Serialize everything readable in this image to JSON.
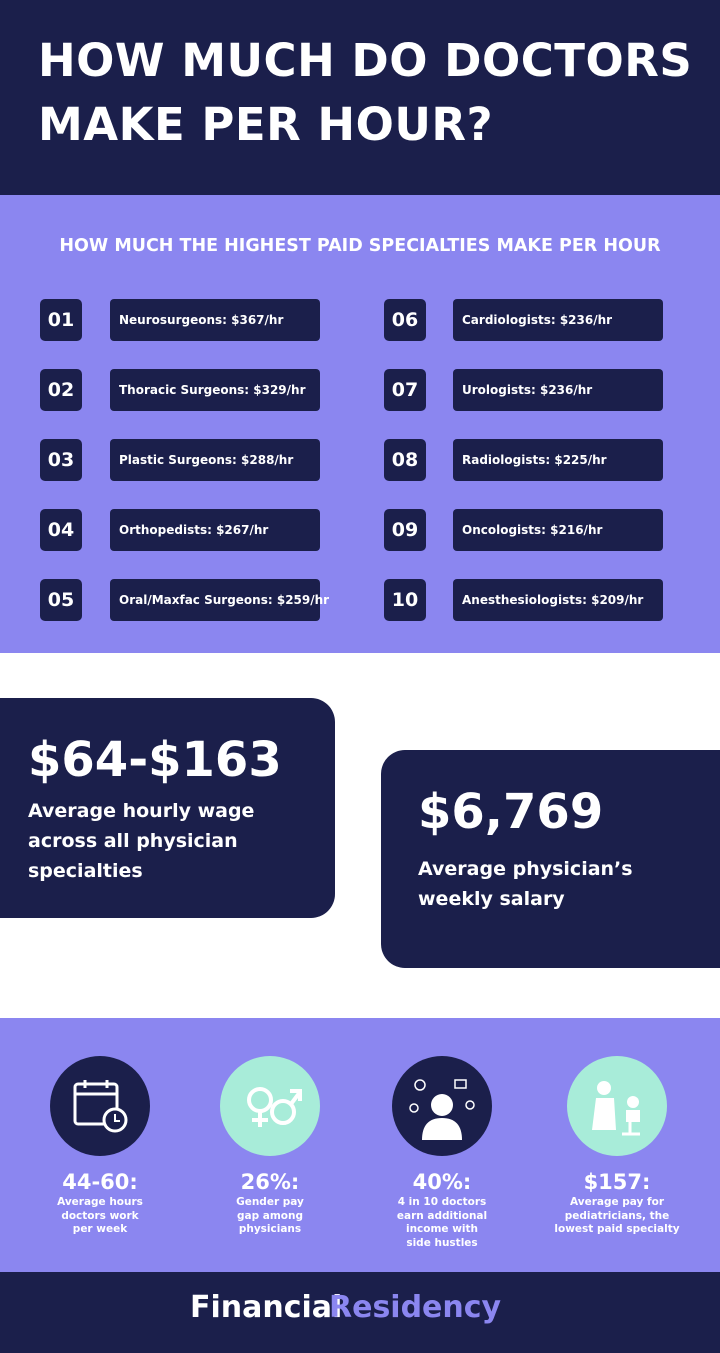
{
  "header": {
    "title_lines": [
      "HOW MUCH DO DOCTORS",
      "MAKE PER HOUR?"
    ]
  },
  "specialties": {
    "subtitle": "HOW MUCH THE HIGHEST PAID SPECIALTIES MAKE PER HOUR",
    "items": [
      {
        "rank": "01",
        "label": "Neurosurgeons: $367/hr"
      },
      {
        "rank": "02",
        "label": "Thoracic Surgeons: $329/hr"
      },
      {
        "rank": "03",
        "label": "Plastic Surgeons: $288/hr"
      },
      {
        "rank": "04",
        "label": "Orthopedists: $267/hr"
      },
      {
        "rank": "05",
        "label": "Oral/Maxfac Surgeons: $259/hr"
      },
      {
        "rank": "06",
        "label": "Cardiologists: $236/hr"
      },
      {
        "rank": "07",
        "label": "Urologists: $236/hr"
      },
      {
        "rank": "08",
        "label": "Radiologists: $225/hr"
      },
      {
        "rank": "09",
        "label": "Oncologists: $216/hr"
      },
      {
        "rank": "10",
        "label": "Anesthesiologists: $209/hr"
      }
    ]
  },
  "cards": [
    {
      "value": "$64-$163",
      "lines": [
        "Average hourly wage",
        "across all physician",
        "specialties"
      ]
    },
    {
      "value": "$6,769",
      "lines": [
        "Average physician’s",
        "weekly salary"
      ]
    }
  ],
  "stats": [
    {
      "value": "44-60:",
      "lines": [
        "Average hours",
        "doctors work",
        "per week"
      ]
    },
    {
      "value": "26%:",
      "lines": [
        "Gender pay",
        "gap among",
        "physicians"
      ]
    },
    {
      "value": "40%:",
      "lines": [
        "4 in 10 doctors",
        "earn additional",
        "income with",
        "side hustles"
      ]
    },
    {
      "value": "$157:",
      "lines": [
        "Average pay for",
        "pediatricians, the",
        "lowest paid specialty"
      ]
    }
  ],
  "footer": {
    "brand_first": "Financial",
    "brand_second": "Residency"
  }
}
